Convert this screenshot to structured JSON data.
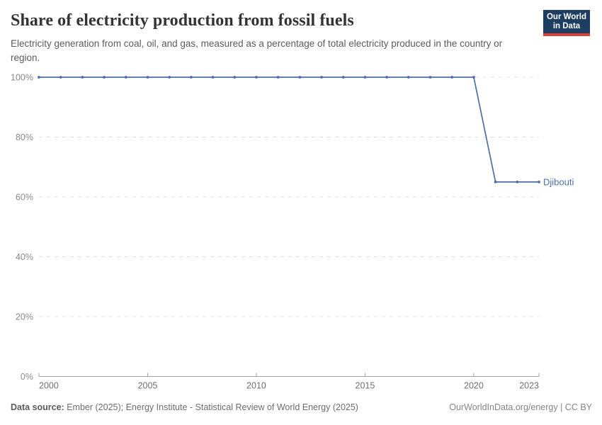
{
  "header": {
    "title": "Share of electricity production from fossil fuels",
    "subtitle": "Electricity generation from coal, oil, and gas, measured as a percentage of total electricity produced in the country or region.",
    "logo": {
      "line1": "Our World",
      "line2": "in Data",
      "bg_color": "#1d3d63",
      "accent_color": "#dc3e32"
    }
  },
  "chart_data": {
    "type": "line",
    "title": "Share of electricity production from fossil fuels",
    "xlabel": "",
    "ylabel": "",
    "x": [
      2000,
      2001,
      2002,
      2003,
      2004,
      2005,
      2006,
      2007,
      2008,
      2009,
      2010,
      2011,
      2012,
      2013,
      2014,
      2015,
      2016,
      2017,
      2018,
      2019,
      2020,
      2021,
      2022,
      2023
    ],
    "series": [
      {
        "name": "Djibouti",
        "color": "#4c6ea8",
        "values": [
          100,
          100,
          100,
          100,
          100,
          100,
          100,
          100,
          100,
          100,
          100,
          100,
          100,
          100,
          100,
          100,
          100,
          100,
          100,
          100,
          100,
          65,
          65,
          65
        ]
      }
    ],
    "xlim": [
      2000,
      2023
    ],
    "ylim": [
      0,
      100
    ],
    "x_ticks": [
      2000,
      2005,
      2010,
      2015,
      2020,
      2023
    ],
    "y_ticks": [
      0,
      20,
      40,
      60,
      80,
      100
    ],
    "y_suffix": "%",
    "grid": "horizontal-dashed",
    "grid_color": "#e0e0e0",
    "axis_color": "#a3a3a3",
    "y_label_color": "#8a8a8a",
    "x_label_color": "#6f6f6f",
    "end_label": "Djibouti",
    "legend_position": "end-of-line"
  },
  "footer": {
    "datasource_label": "Data source:",
    "datasource_text": " Ember (2025); Energy Institute - Statistical Review of World Energy (2025)",
    "rights": "OurWorldInData.org/energy | CC BY"
  }
}
